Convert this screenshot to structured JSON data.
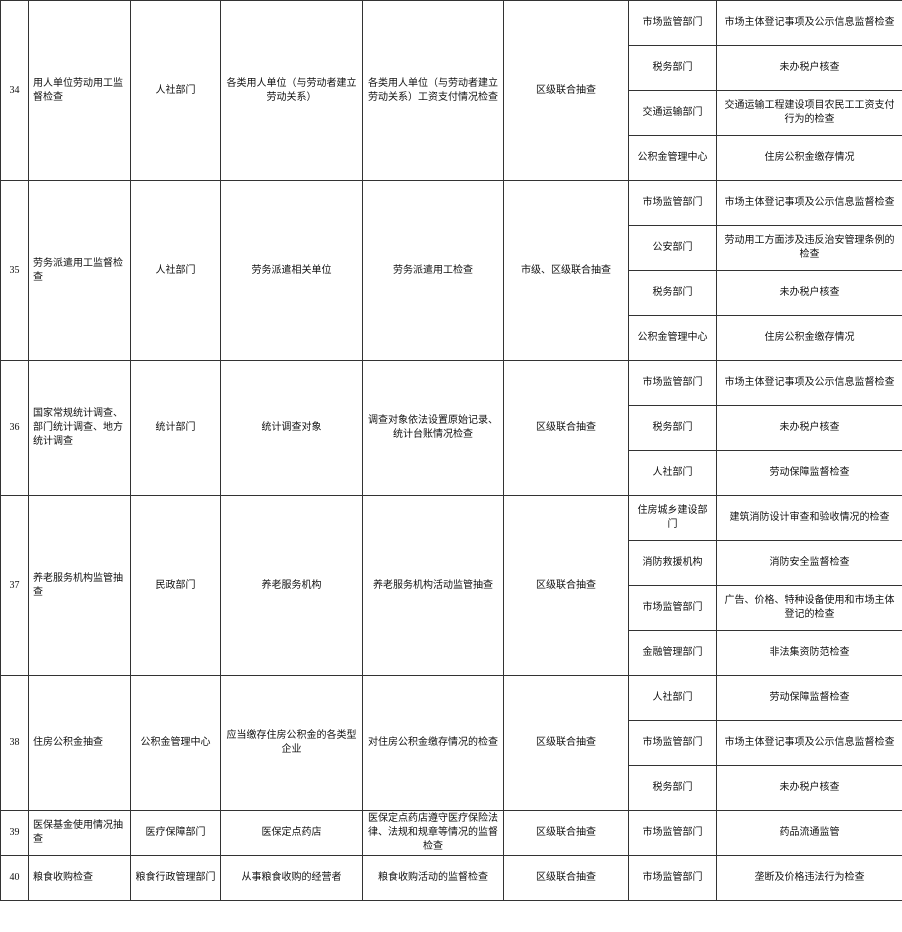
{
  "rows": [
    {
      "no": "34",
      "item": "用人单位劳动用工监督检查",
      "dept": "人社部门",
      "target": "各类用人单位（与劳动者建立劳动关系）",
      "content": "各类用人单位（与劳动者建立劳动关系）工资支付情况检查",
      "method": "区级联合抽查",
      "partners": [
        {
          "dept": "市场监管部门",
          "content": "市场主体登记事项及公示信息监督检查"
        },
        {
          "dept": "税务部门",
          "content": "未办税户核查"
        },
        {
          "dept": "交通运输部门",
          "content": "交通运输工程建设项目农民工工资支付行为的检查"
        },
        {
          "dept": "公积金管理中心",
          "content": "住房公积金缴存情况"
        }
      ]
    },
    {
      "no": "35",
      "item": "劳务派遣用工监督检查",
      "dept": "人社部门",
      "target": "劳务派遣相关单位",
      "content": "劳务派遣用工检查",
      "method": "市级、区级联合抽查",
      "partners": [
        {
          "dept": "市场监管部门",
          "content": "市场主体登记事项及公示信息监督检查"
        },
        {
          "dept": "公安部门",
          "content": "劳动用工方面涉及违反治安管理条例的检查"
        },
        {
          "dept": "税务部门",
          "content": "未办税户核查"
        },
        {
          "dept": "公积金管理中心",
          "content": "住房公积金缴存情况"
        }
      ]
    },
    {
      "no": "36",
      "item": "国家常规统计调查、部门统计调查、地方统计调查",
      "dept": "统计部门",
      "target": "统计调查对象",
      "content": "调查对象依法设置原始记录、统计台账情况检查",
      "method": "区级联合抽查",
      "partners": [
        {
          "dept": "市场监管部门",
          "content": "市场主体登记事项及公示信息监督检查"
        },
        {
          "dept": "税务部门",
          "content": "未办税户核查"
        },
        {
          "dept": "人社部门",
          "content": "劳动保障监督检查"
        }
      ]
    },
    {
      "no": "37",
      "item": "养老服务机构监管抽查",
      "dept": "民政部门",
      "target": "养老服务机构",
      "content": "养老服务机构活动监管抽查",
      "method": "区级联合抽查",
      "partners": [
        {
          "dept": "住房城乡建设部门",
          "content": "建筑消防设计审查和验收情况的检查"
        },
        {
          "dept": "消防救援机构",
          "content": "消防安全监督检查"
        },
        {
          "dept": "市场监管部门",
          "content": "广告、价格、特种设备使用和市场主体登记的检查"
        },
        {
          "dept": "金融管理部门",
          "content": "非法集资防范检查"
        }
      ]
    },
    {
      "no": "38",
      "item": "住房公积金抽查",
      "dept": "公积金管理中心",
      "target": "应当缴存住房公积金的各类型企业",
      "content": "对住房公积金缴存情况的检查",
      "method": "区级联合抽查",
      "partners": [
        {
          "dept": "人社部门",
          "content": "劳动保障监督检查"
        },
        {
          "dept": "市场监管部门",
          "content": "市场主体登记事项及公示信息监督检查"
        },
        {
          "dept": "税务部门",
          "content": "未办税户核查"
        }
      ]
    },
    {
      "no": "39",
      "item": "医保基金使用情况抽查",
      "dept": "医疗保障部门",
      "target": "医保定点药店",
      "content": "医保定点药店遵守医疗保险法律、法规和规章等情况的监督检查",
      "method": "区级联合抽查",
      "partners": [
        {
          "dept": "市场监管部门",
          "content": "药品流通监管"
        }
      ]
    },
    {
      "no": "40",
      "item": "粮食收购检查",
      "dept": "粮食行政管理部门",
      "target": "从事粮食收购的经营者",
      "content": "粮食收购活动的监督检查",
      "method": "区级联合抽查",
      "partners": [
        {
          "dept": "市场监管部门",
          "content": "垄断及价格违法行为检查"
        }
      ]
    }
  ]
}
